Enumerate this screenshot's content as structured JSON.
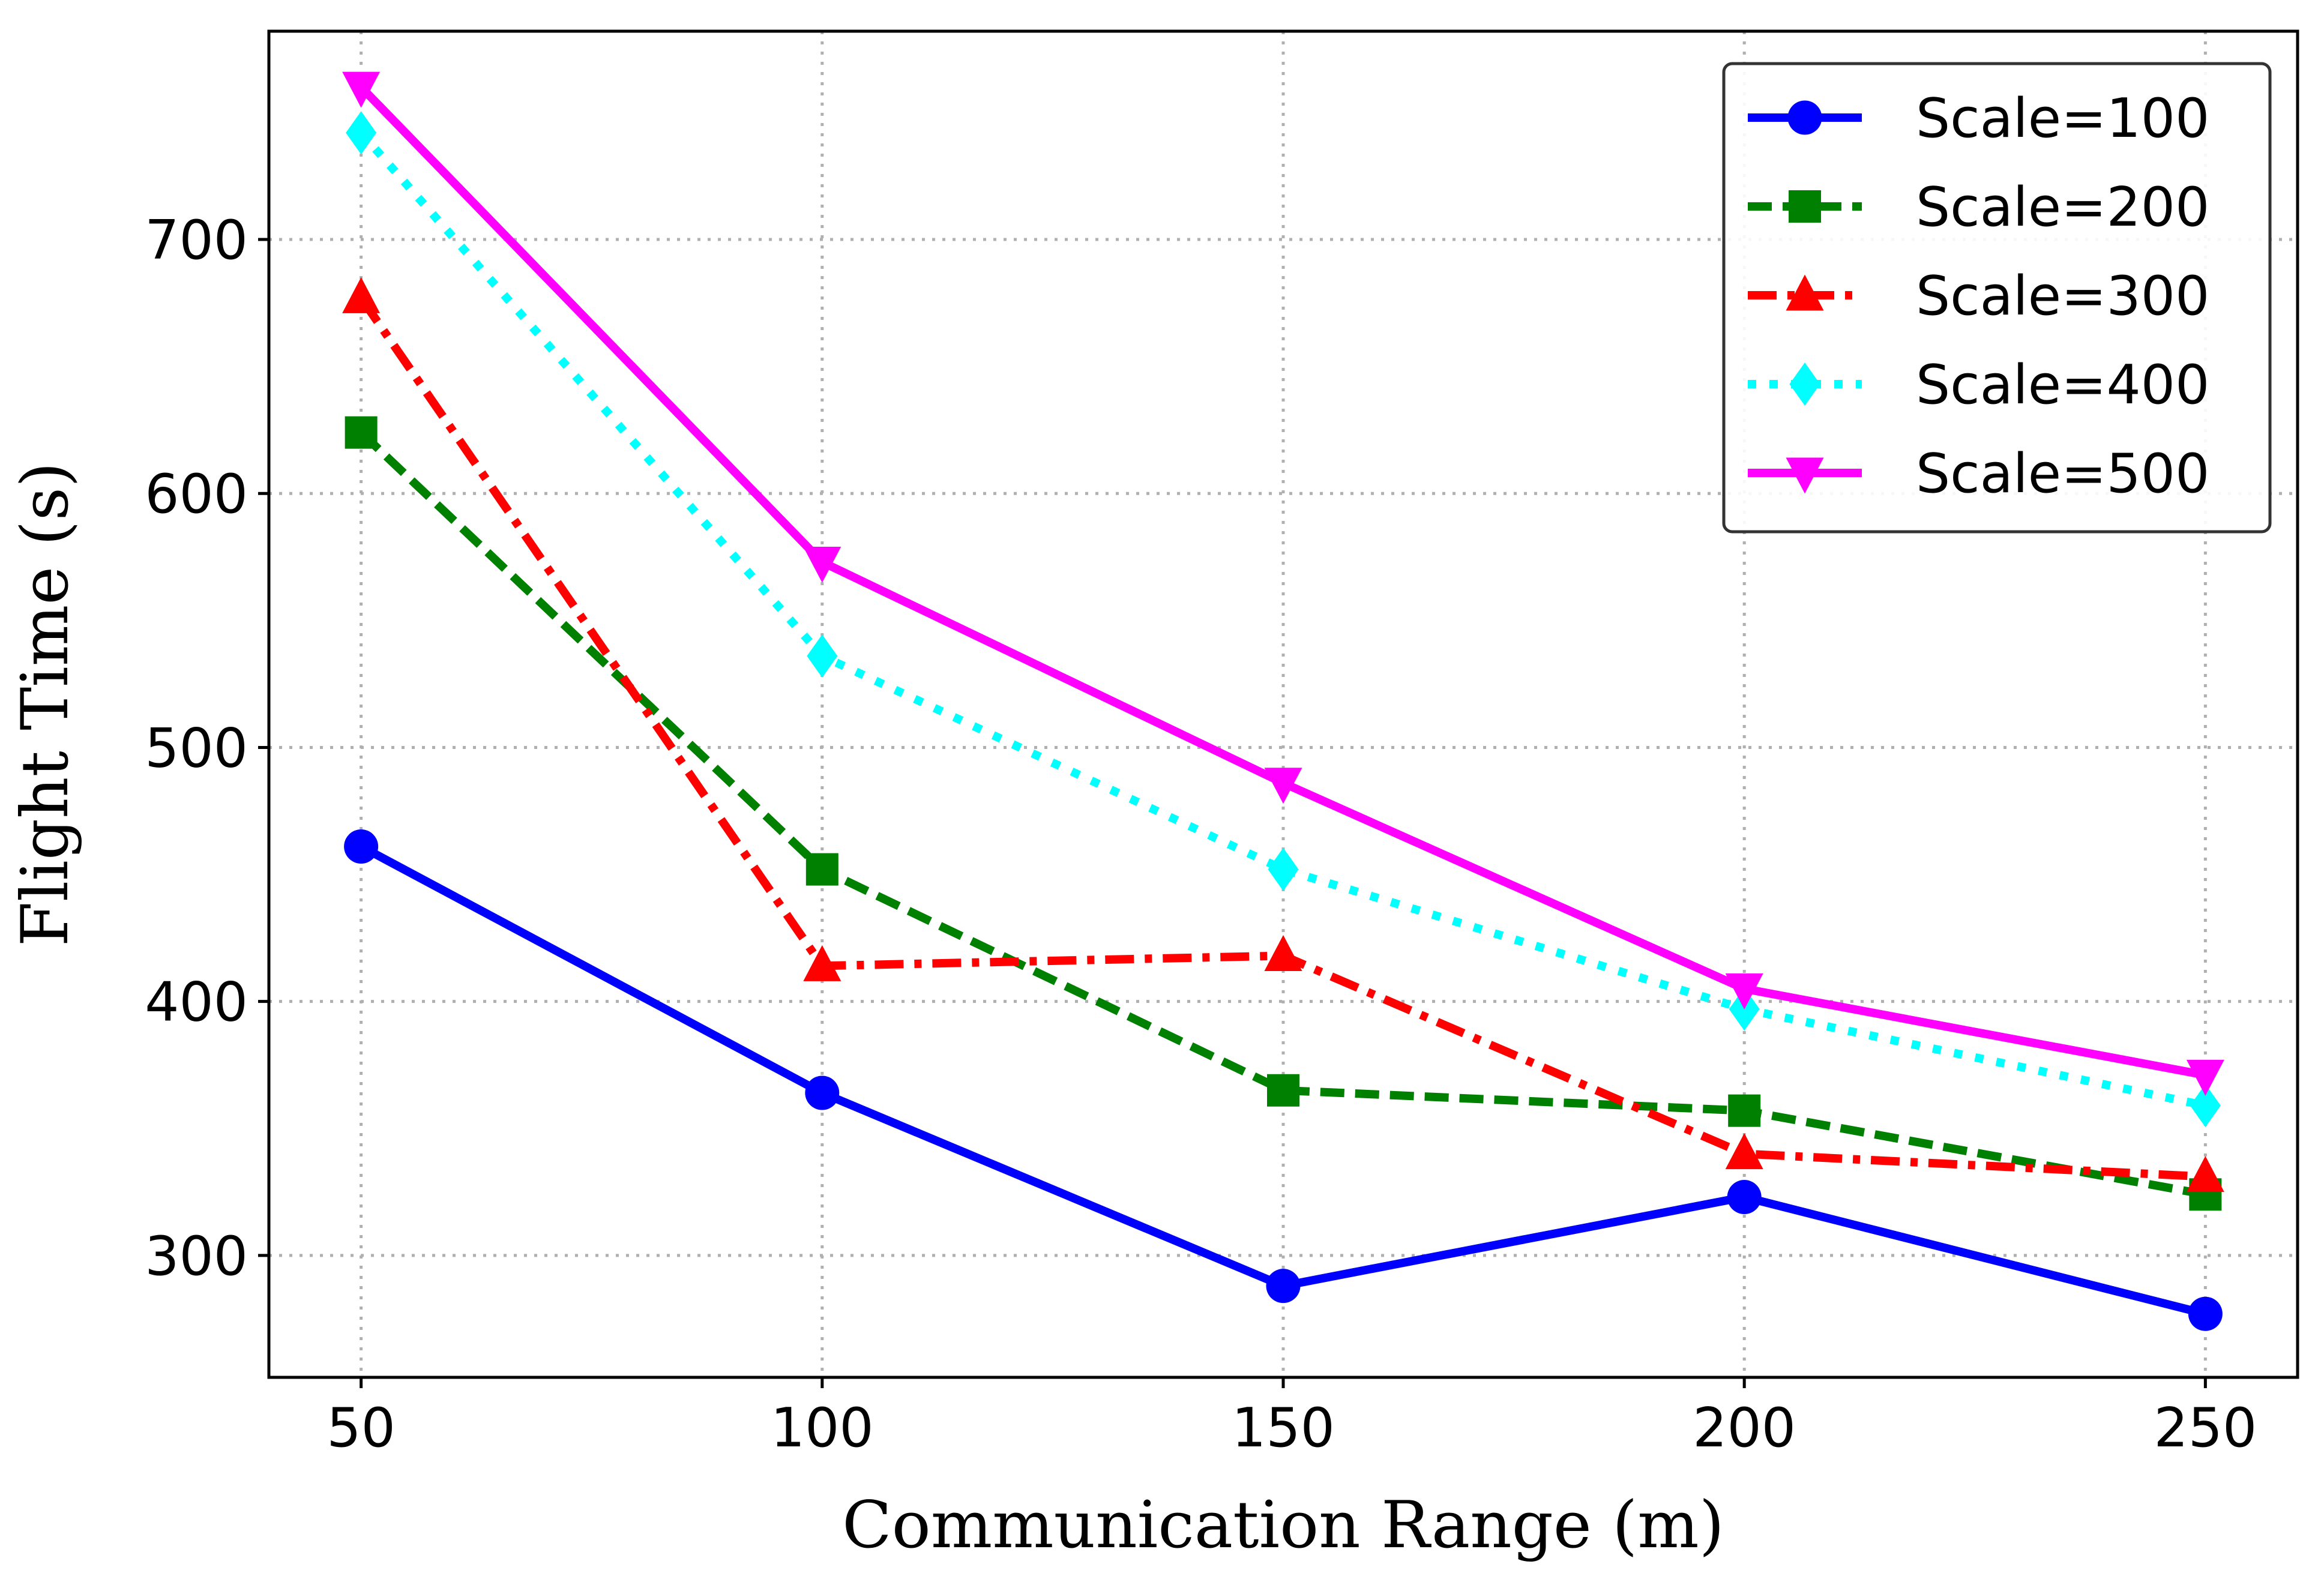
{
  "chart_data": {
    "type": "line",
    "title": "",
    "xlabel": "Communication Range (m)",
    "ylabel": "Flight Time (s)",
    "x": [
      50,
      100,
      150,
      200,
      250
    ],
    "xticks": [
      "50",
      "100",
      "150",
      "200",
      "250"
    ],
    "yticks": [
      "300",
      "400",
      "500",
      "600",
      "700"
    ],
    "xlim": [
      40,
      260
    ],
    "ylim": [
      252,
      782
    ],
    "grid": true,
    "legend_position": "top-right",
    "series": [
      {
        "name": "Scale=100",
        "values": [
          461,
          364,
          288,
          323,
          277
        ],
        "color": "#0000ff",
        "linestyle": "solid",
        "marker": "circle"
      },
      {
        "name": "Scale=200",
        "values": [
          624,
          452,
          365,
          357,
          324
        ],
        "color": "#008000",
        "linestyle": "dashed",
        "marker": "square"
      },
      {
        "name": "Scale=300",
        "values": [
          677,
          414,
          418,
          340,
          331
        ],
        "color": "#ff0000",
        "linestyle": "dashdot",
        "marker": "triangle-up"
      },
      {
        "name": "Scale=400",
        "values": [
          742,
          536,
          452,
          397,
          359
        ],
        "color": "#00ffff",
        "linestyle": "dotted",
        "marker": "diamond"
      },
      {
        "name": "Scale=500",
        "values": [
          760,
          573,
          486,
          405,
          371
        ],
        "color": "#ff00ff",
        "linestyle": "solid",
        "marker": "triangle-down"
      }
    ]
  }
}
